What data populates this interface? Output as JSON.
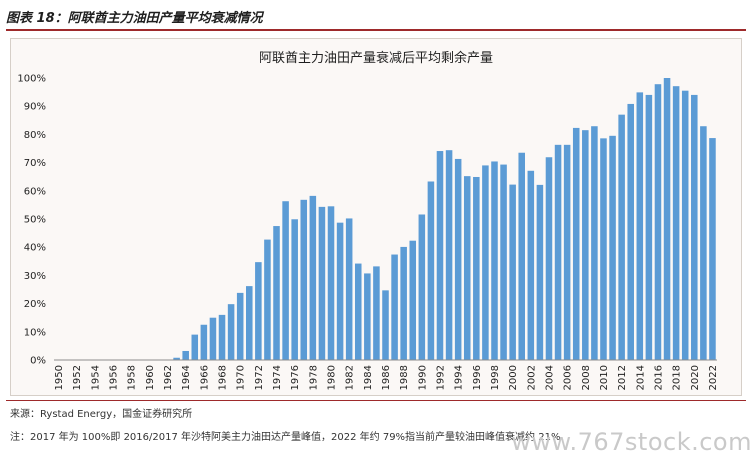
{
  "figure_title": "图表 18：阿联酋主力油田产量平均衰减情况",
  "source": "来源：Rystad Energy，国金证券研究所",
  "note": "注：2017 年为 100%即 2016/2017 年沙特阿美主力油田达产量峰值，2022 年约 79%指当前产量较油田峰值衰减约 21%",
  "watermark": "www.767stock.com",
  "colors": {
    "bar": "#5b9bd5",
    "title_rule": "#9e2a2b"
  },
  "chart_data": {
    "type": "bar",
    "title": "阿联酋主力油田产量衰减后平均剩余产量",
    "xlabel": "",
    "ylabel": "",
    "ylim": [
      0,
      100
    ],
    "yticks": [
      "0%",
      "10%",
      "20%",
      "30%",
      "40%",
      "50%",
      "60%",
      "70%",
      "80%",
      "90%",
      "100%"
    ],
    "grid": false,
    "categories": [
      "1950",
      "1951",
      "1952",
      "1953",
      "1954",
      "1955",
      "1956",
      "1957",
      "1958",
      "1959",
      "1960",
      "1961",
      "1962",
      "1963",
      "1964",
      "1965",
      "1966",
      "1967",
      "1968",
      "1969",
      "1970",
      "1971",
      "1972",
      "1973",
      "1974",
      "1975",
      "1976",
      "1977",
      "1978",
      "1979",
      "1980",
      "1981",
      "1982",
      "1983",
      "1984",
      "1985",
      "1986",
      "1987",
      "1988",
      "1989",
      "1990",
      "1991",
      "1992",
      "1993",
      "1994",
      "1995",
      "1996",
      "1997",
      "1998",
      "1999",
      "2000",
      "2001",
      "2002",
      "2003",
      "2004",
      "2005",
      "2006",
      "2007",
      "2008",
      "2009",
      "2010",
      "2011",
      "2012",
      "2013",
      "2014",
      "2015",
      "2016",
      "2017",
      "2018",
      "2019",
      "2020",
      "2021",
      "2022"
    ],
    "values": [
      0,
      0,
      0,
      0,
      0,
      0,
      0,
      0,
      0,
      0,
      0,
      0,
      0,
      0.8,
      3.2,
      9,
      12.5,
      15,
      16,
      19.8,
      23.8,
      26.2,
      34.7,
      42.7,
      47.5,
      56.3,
      49.9,
      56.8,
      58.2,
      54.3,
      54.5,
      48.7,
      50.2,
      34.2,
      30.7,
      33.2,
      24.7,
      37.4,
      40.1,
      42.3,
      51.6,
      63.3,
      74.1,
      74.4,
      71.3,
      65.2,
      64.9,
      69,
      70.4,
      69.3,
      62.2,
      73.5,
      67.1,
      62.1,
      71.9,
      76.3,
      76.3,
      82.3,
      81.5,
      82.9,
      78.6,
      79.5,
      87,
      90.8,
      94.9,
      94,
      97.8,
      100,
      97.1,
      95.5,
      94,
      82.9,
      78.7
    ]
  }
}
